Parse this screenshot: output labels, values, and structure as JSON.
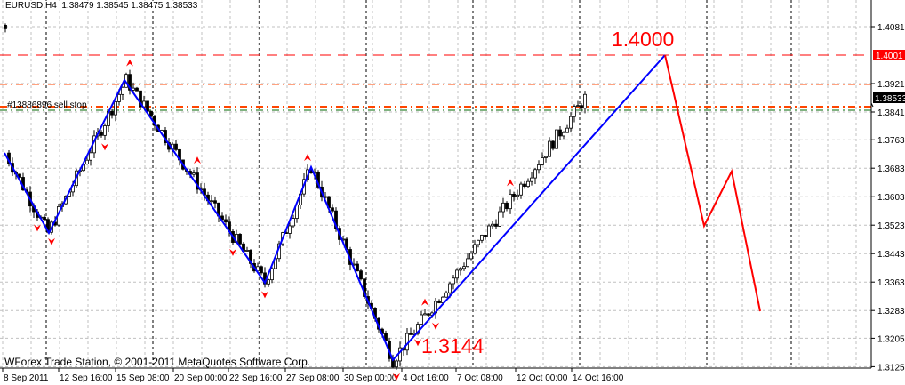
{
  "header": {
    "symbol": "EURUSD,H4",
    "ohlc": "1.38479 1.38545 1.38475 1.38533"
  },
  "footer": {
    "copyright": "WForex Trade Station, © 2001-2011 MetaQuotes Software Corp."
  },
  "order_label": "#13886896 sell stop",
  "annotations": {
    "target": "1.4000",
    "low": "1.3144"
  },
  "colors": {
    "zigzag": "#0000ff",
    "projection": "#ff0000",
    "fractal": "#ff0000",
    "level": "#ff0000",
    "order": "#ff4500",
    "stop": "#006400",
    "candle": "#000000"
  },
  "chart_data": {
    "type": "candlestick",
    "symbol": "EURUSD",
    "timeframe": "H4",
    "y_ticks": [
      "1.40810",
      "1.39210",
      "1.38410",
      "1.37630",
      "1.36830",
      "1.36030",
      "1.35230",
      "1.34430",
      "1.33630",
      "1.32830",
      "1.32050",
      "1.31250"
    ],
    "y_tick_values": [
      1.4081,
      1.3921,
      1.3841,
      1.3763,
      1.3683,
      1.3603,
      1.3523,
      1.3443,
      1.3363,
      1.3283,
      1.3205,
      1.3125
    ],
    "ylim": [
      1.3125,
      1.4081
    ],
    "x_ticks": [
      "8 Sep 2011",
      "12 Sep 16:00",
      "15 Sep 08:00",
      "20 Sep 00:00",
      "22 Sep 16:00",
      "27 Sep 08:00",
      "30 Sep 00:00",
      "4 Oct 16:00",
      "7 Oct 08:00",
      "12 Oct 00:00",
      "14 Oct 16:00"
    ],
    "price_labels": {
      "level": "1.4001",
      "bid": "1.38533"
    },
    "level_price": 1.4001,
    "bid_price": 1.38533,
    "zigzag": [
      1.3726,
      1.3501,
      1.3931,
      1.3361,
      1.3686,
      1.3144,
      1.4001
    ],
    "projection": [
      1.4001,
      1.3521,
      1.3674,
      1.3281
    ],
    "last_close": 1.38533
  }
}
